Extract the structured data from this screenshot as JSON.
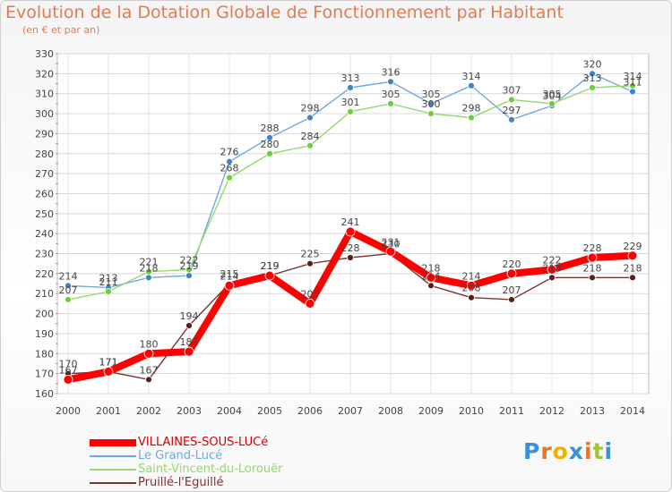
{
  "chart_data": {
    "type": "line",
    "title": "Evolution de la Dotation Globale de Fonctionnement par Habitant",
    "subtitle": "(en € et par an)",
    "xlabel": "",
    "ylabel": "",
    "x": [
      "2000",
      "2001",
      "2002",
      "2003",
      "2004",
      "2005",
      "2006",
      "2007",
      "2008",
      "2009",
      "2010",
      "2011",
      "2012",
      "2013",
      "2014"
    ],
    "ylim": [
      160,
      330
    ],
    "yticks": [
      "160",
      "170",
      "180",
      "190",
      "200",
      "210",
      "220",
      "230",
      "240",
      "250",
      "260",
      "270",
      "280",
      "290",
      "300",
      "310",
      "320",
      "330"
    ],
    "grid": true,
    "legend_position": "bottom-left",
    "series": [
      {
        "name": "VILLAINES-SOUS-LUCé",
        "color": "#ff0000",
        "marker": "#ff0000",
        "emphasis": true,
        "values": [
          167,
          171,
          180,
          181,
          214,
          219,
          205,
          241,
          231,
          218,
          214,
          220,
          222,
          228,
          229
        ],
        "labels": [
          "167",
          "171",
          "180",
          "181",
          "214",
          "219",
          "205",
          "241",
          "231",
          "218",
          "214",
          "220",
          "222",
          "228",
          "229"
        ]
      },
      {
        "name": "Le Grand-Lucé",
        "color": "#6fa8dc",
        "marker": "#3d85c6",
        "values": [
          214,
          213,
          218,
          219,
          276,
          288,
          298,
          313,
          316,
          305,
          314,
          297,
          304,
          320,
          311
        ],
        "labels": [
          "214",
          "213",
          "218",
          "219",
          "276",
          "288",
          "298",
          "313",
          "316",
          "305",
          "314",
          "297",
          "304",
          "320",
          "311"
        ]
      },
      {
        "name": "Saint-Vincent-du-Lorouër",
        "color": "#93d96b",
        "marker": "#6ccf3a",
        "values": [
          207,
          211,
          221,
          222,
          268,
          280,
          284,
          301,
          305,
          300,
          298,
          307,
          305,
          313,
          314
        ],
        "labels": [
          "207",
          "211",
          "221",
          "222",
          "268",
          "280",
          "284",
          "301",
          "305",
          "300",
          "298",
          "307",
          "305",
          "313",
          "314"
        ]
      },
      {
        "name": "Pruillé-l'Eguillé",
        "color": "#7a3434",
        "marker": "#5a1e1e",
        "values": [
          170,
          171,
          167,
          194,
          215,
          219,
          225,
          228,
          230,
          214,
          208,
          207,
          218,
          218,
          218
        ],
        "labels": [
          "170",
          "171",
          "167",
          "194",
          "215",
          "219",
          "225",
          "228",
          "230",
          "214",
          "208",
          "207",
          "218",
          "218",
          "218"
        ]
      }
    ]
  },
  "logo": {
    "letters": [
      "P",
      "r",
      "o",
      "x",
      "i",
      "t",
      "i"
    ],
    "colors": [
      "#3b8fd8",
      "#e8742a",
      "#f0b000",
      "#3b8fd8",
      "#e8742a",
      "#9bc53d",
      "#3b8fd8"
    ]
  }
}
